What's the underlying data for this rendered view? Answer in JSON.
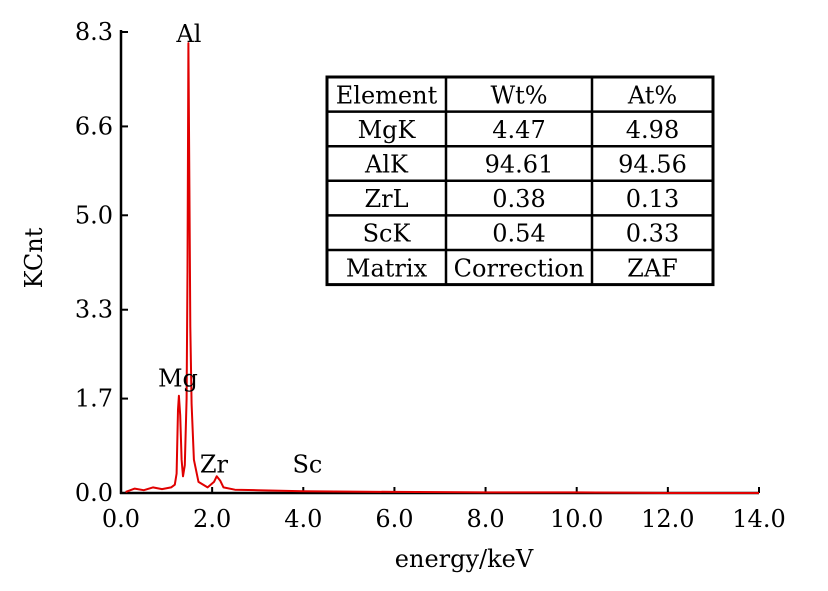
{
  "chart_data": {
    "type": "line",
    "title": "",
    "xlabel": "energy/keV",
    "ylabel": "KCnt",
    "xlim": [
      0,
      14
    ],
    "ylim": [
      0,
      8.3
    ],
    "x_ticks": [
      "0.0",
      "2.0",
      "4.0",
      "6.0",
      "8.0",
      "10.0",
      "12.0",
      "14.0"
    ],
    "y_ticks": [
      "0.0",
      "1.7",
      "3.3",
      "5.0",
      "6.6",
      "8.3"
    ],
    "grid": false,
    "series_color": "#e00000",
    "series": [
      {
        "points": [
          [
            0.1,
            0.02
          ],
          [
            0.3,
            0.08
          ],
          [
            0.5,
            0.05
          ],
          [
            0.7,
            0.1
          ],
          [
            0.9,
            0.07
          ],
          [
            1.1,
            0.1
          ],
          [
            1.18,
            0.15
          ],
          [
            1.22,
            0.35
          ],
          [
            1.25,
            1.5
          ],
          [
            1.27,
            1.75
          ],
          [
            1.3,
            1.4
          ],
          [
            1.33,
            0.6
          ],
          [
            1.36,
            0.3
          ],
          [
            1.4,
            0.5
          ],
          [
            1.44,
            1.7
          ],
          [
            1.46,
            4.0
          ],
          [
            1.48,
            8.1
          ],
          [
            1.5,
            5.5
          ],
          [
            1.52,
            3.0
          ],
          [
            1.55,
            1.6
          ],
          [
            1.6,
            0.6
          ],
          [
            1.7,
            0.2
          ],
          [
            1.9,
            0.1
          ],
          [
            2.04,
            0.2
          ],
          [
            2.1,
            0.3
          ],
          [
            2.18,
            0.22
          ],
          [
            2.25,
            0.1
          ],
          [
            2.5,
            0.06
          ],
          [
            3.0,
            0.05
          ],
          [
            3.5,
            0.04
          ],
          [
            4.0,
            0.03
          ],
          [
            6.0,
            0.02
          ],
          [
            8.0,
            0.01
          ],
          [
            10.0,
            0.01
          ],
          [
            12.0,
            0.0
          ],
          [
            14.0,
            0.0
          ]
        ]
      }
    ],
    "annotations": [
      {
        "text": "Al",
        "x": 1.49,
        "y": 8.3
      },
      {
        "text": "Mg",
        "x": 1.25,
        "y": 2.1
      },
      {
        "text": "Zr",
        "x": 2.04,
        "y": 0.55
      },
      {
        "text": "Sc",
        "x": 4.09,
        "y": 0.55
      }
    ]
  },
  "table": {
    "headers": [
      "Element",
      "Wt%",
      "At%"
    ],
    "rows": [
      [
        "MgK",
        "4.47",
        "4.98"
      ],
      [
        "AlK",
        "94.61",
        "94.56"
      ],
      [
        "ZrL",
        "0.38",
        "0.13"
      ],
      [
        "ScK",
        "0.54",
        "0.33"
      ],
      [
        "Matrix",
        "Correction",
        "ZAF"
      ]
    ]
  }
}
